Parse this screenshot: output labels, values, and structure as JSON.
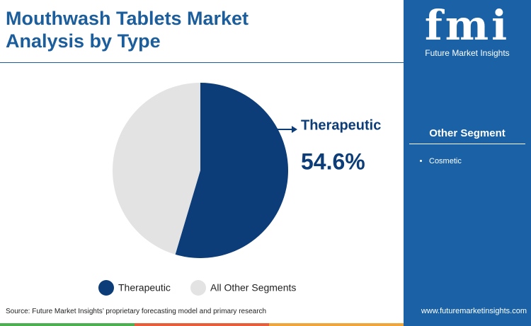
{
  "chart_data": {
    "type": "pie",
    "title": "Mouthwash Tablets Market Analysis by Type",
    "categories": [
      "Therapeutic",
      "All Other Segments"
    ],
    "values": [
      54.6,
      45.4
    ],
    "value_labels": [
      "54.6%",
      null
    ],
    "colors": [
      "#0c3d78",
      "#e3e3e3"
    ],
    "source": "Source: Future Market Insights’ proprietary forecasting model and primary research"
  },
  "sidebar": {
    "brand": "fmi",
    "brand_name": "Future Market Insights",
    "heading": "Other Segment",
    "items": [
      "Cosmetic"
    ],
    "website": "www.futuremarketinsights.com"
  }
}
